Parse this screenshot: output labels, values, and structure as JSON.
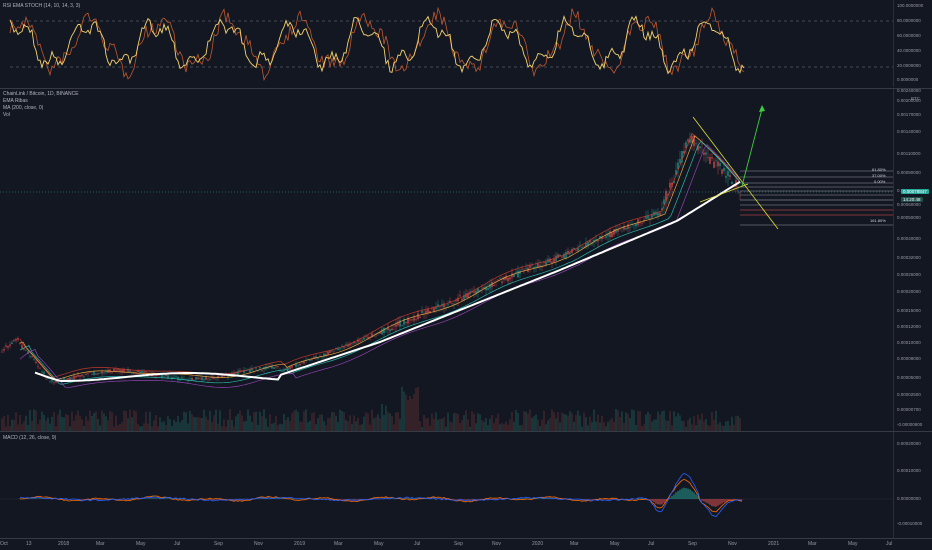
{
  "rsi_panel": {
    "legend": "RSI EMA STOCH (14, 10, 14, 3, 3)",
    "axis_ticks": [
      "100.0000000",
      "80.0000000",
      "60.0000000",
      "40.0000000",
      "20.0000000",
      "0.0000000"
    ]
  },
  "price_panel": {
    "legend_lines": [
      "ChainLink / Bitcoin, 1D, BINANCE",
      "EMA Ribas",
      "MA (200, close, 0)",
      "Vol"
    ],
    "axis_ticks": [
      "0.00240000",
      "0.00200000",
      "0.00170000",
      "0.00140000",
      "0.00110000",
      "0.00090000",
      "0.00070000",
      "0.00060000",
      "0.00050000",
      "0.00040000",
      "0.00032000",
      "0.00026000",
      "0.00020000",
      "0.00015000",
      "0.00012000",
      "0.00010000",
      "0.00008000",
      "0.00005000",
      "0.00002500",
      "0.00000700",
      "-0.00000900"
    ],
    "unit": "BTC",
    "price_badge": "0.00078847",
    "time_badge": "14:20:48",
    "fib_labels": [
      "61.80%",
      "37.00%",
      "0.00%",
      "161.80%"
    ]
  },
  "macd_panel": {
    "legend": "MACD (12, 26, close, 9)",
    "axis_ticks": [
      "0.00020000",
      "0.00010000",
      "0.00000000",
      "-0.00010000"
    ]
  },
  "x_axis": {
    "labels": [
      "Oct",
      "13",
      "2018",
      "Mar",
      "May",
      "Jul",
      "Sep",
      "Nov",
      "2019",
      "Mar",
      "May",
      "Jul",
      "Sep",
      "Nov",
      "2020",
      "Mar",
      "May",
      "Jul",
      "Sep",
      "Nov",
      "2021",
      "Mar",
      "May",
      "Jul"
    ]
  },
  "colors": {
    "background": "#131722",
    "rsi_fast": "#f5d36c",
    "rsi_slow": "#c0582f",
    "ma200": "#ffffff",
    "ema_ribbon": [
      "#c0392b",
      "#e6a23c",
      "#2ab7a9",
      "#8e44ad"
    ],
    "trend_line": "#e0e03a",
    "projection_arrow": "#3ccf3c",
    "price_badge": "#26a69a",
    "macd_line": "#2962ff",
    "signal_line": "#ff6d00"
  }
}
